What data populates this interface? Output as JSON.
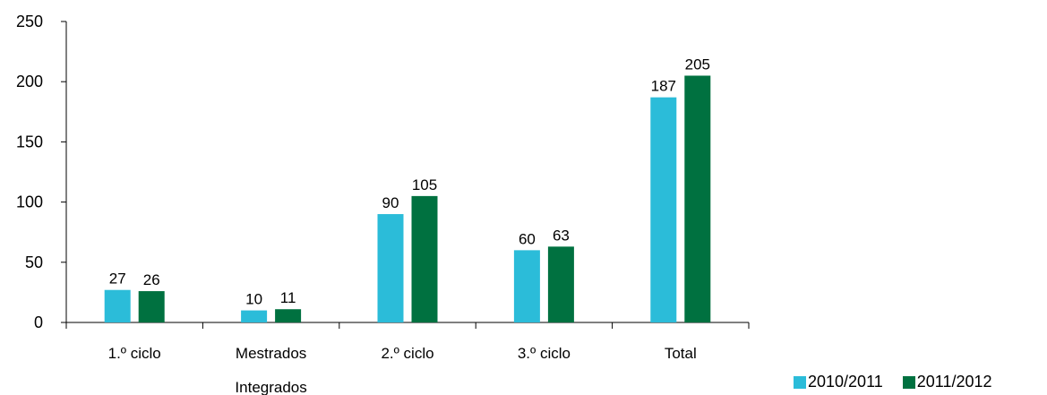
{
  "chart_data": {
    "type": "bar",
    "categories": [
      "1.º ciclo",
      "Mestrados Integrados",
      "2.º ciclo",
      "3.º ciclo",
      "Total"
    ],
    "series": [
      {
        "name": "2010/2011",
        "color": "#2bbcd9",
        "values": [
          27,
          10,
          90,
          60,
          187
        ]
      },
      {
        "name": "2011/2012",
        "color": "#007140",
        "values": [
          26,
          11,
          105,
          63,
          205
        ]
      }
    ],
    "ylim": [
      0,
      250
    ],
    "yticks": [
      0,
      50,
      100,
      150,
      200,
      250
    ],
    "title": "",
    "xlabel": "",
    "ylabel": "",
    "grid": false,
    "legend_position": "bottom-right"
  }
}
